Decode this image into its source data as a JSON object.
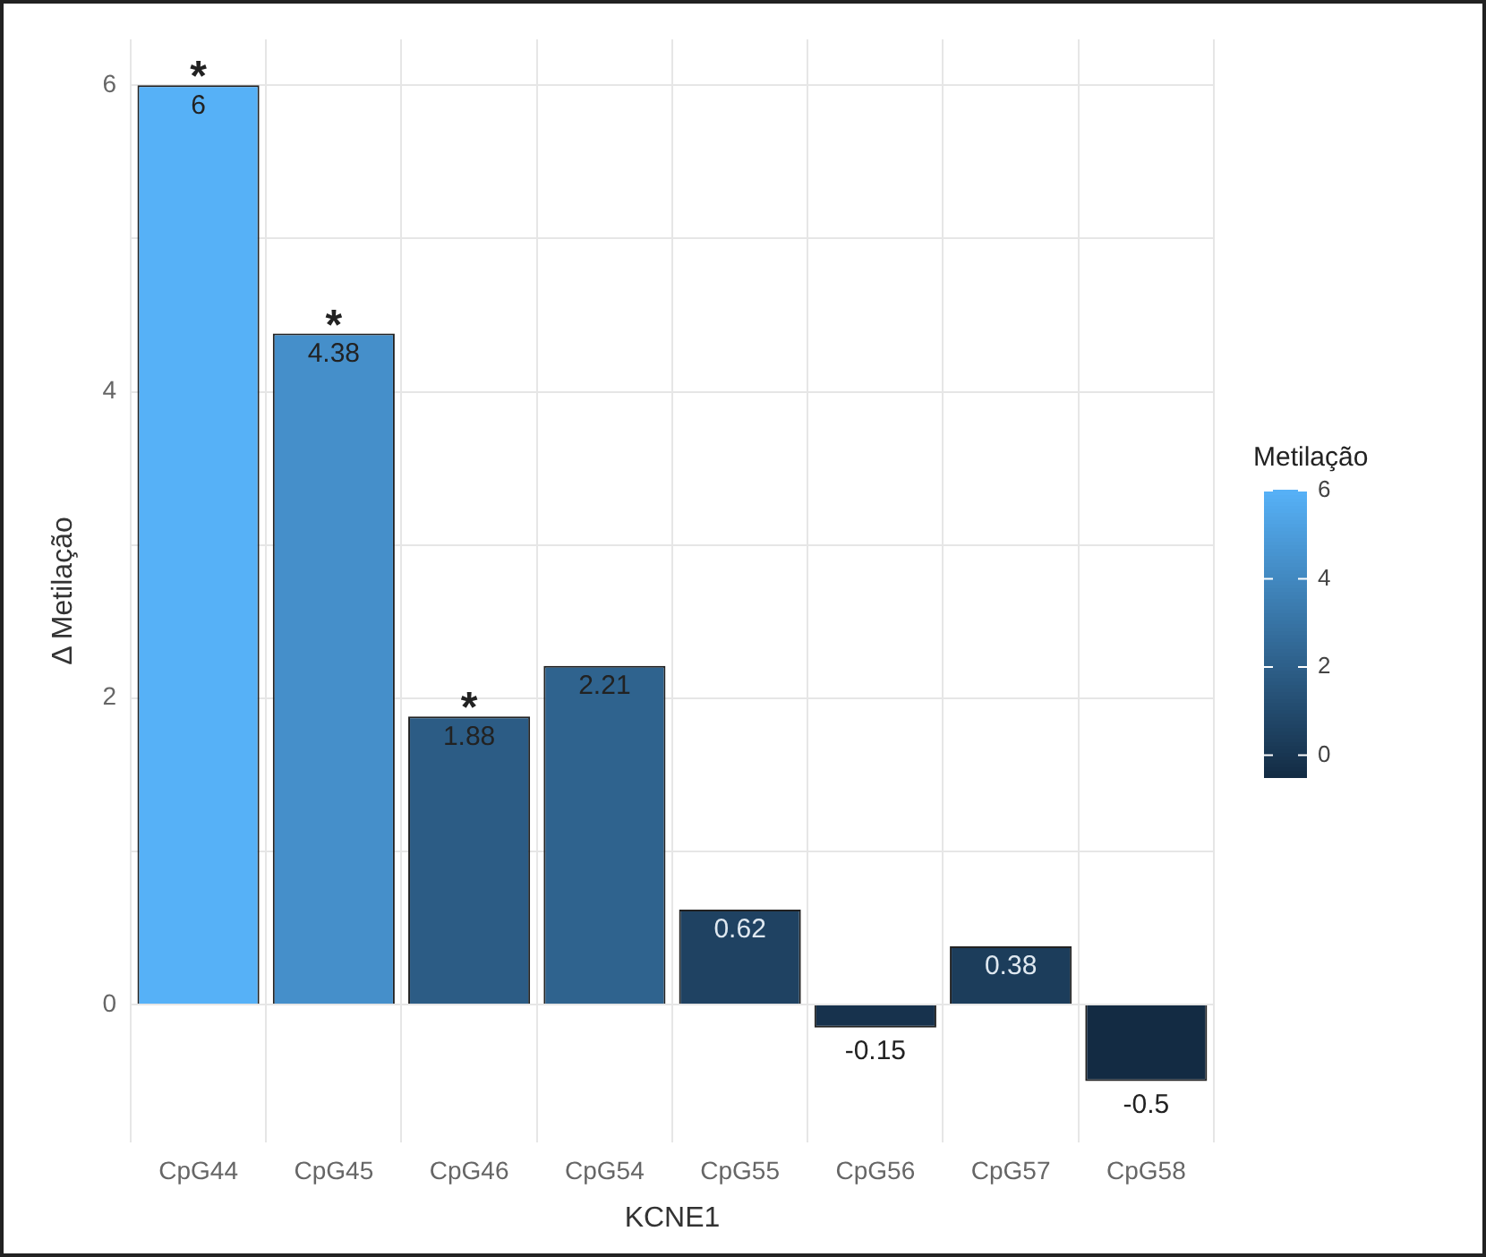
{
  "chart_data": {
    "type": "bar",
    "xlabel": "KCNE1",
    "ylabel": "Δ Metilação",
    "clabel": "Metilação",
    "categories": [
      "CpG44",
      "CpG45",
      "CpG46",
      "CpG54",
      "CpG55",
      "CpG56",
      "CpG57",
      "CpG58"
    ],
    "values": [
      6,
      4.38,
      1.88,
      2.21,
      0.62,
      -0.15,
      0.38,
      -0.5
    ],
    "colors": [
      "#56b1f7",
      "#458fca",
      "#2c5c85",
      "#2f638e",
      "#1f4262",
      "#17324d",
      "#1c3d5b",
      "#132b43"
    ],
    "data_labels": true,
    "ylim": [
      -0.9,
      6.3
    ],
    "yticks": [
      0,
      {
        "value": 1,
        "label": null
      },
      2,
      {
        "value": 3,
        "label": null
      },
      4,
      {
        "value": 5,
        "label": null
      },
      6
    ],
    "grid": true,
    "clim": [
      -0.5,
      6
    ],
    "cticks": [
      0,
      2,
      4,
      6
    ],
    "annotations": [
      {
        "text": "*",
        "x": "CpG44",
        "y": 6
      },
      {
        "text": "*",
        "x": "CpG45",
        "y": 4.38
      },
      {
        "text": "*",
        "x": "CpG46",
        "y": 1.88
      }
    ]
  }
}
